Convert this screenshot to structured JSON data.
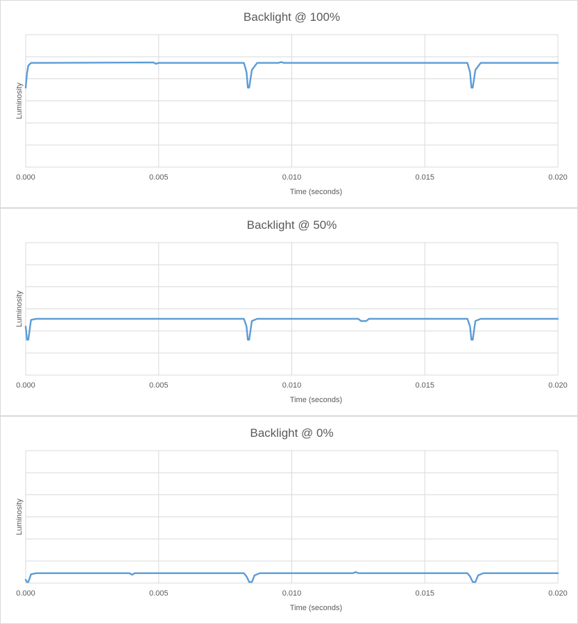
{
  "chart_data": [
    {
      "type": "line",
      "title": "Backlight @ 100%",
      "xlabel": "Time (seconds)",
      "ylabel": "Luminosity",
      "xlim": [
        0,
        0.02
      ],
      "ylim": [
        0,
        6
      ],
      "x_ticks": [
        "0.000",
        "0.005",
        "0.010",
        "0.015",
        "0.020"
      ],
      "y_gridlines": 6,
      "grid": true,
      "legend": "none",
      "series": [
        {
          "color": "#5b9bd5",
          "x": [
            0,
            5e-05,
            0.0001,
            0.0002,
            0.0004,
            0.0048,
            0.0049,
            0.005,
            0.0082,
            0.0083,
            0.00835,
            0.0084,
            0.0085,
            0.0087,
            0.0095,
            0.0096,
            0.0097,
            0.0166,
            0.0167,
            0.01675,
            0.0168,
            0.0169,
            0.0171,
            0.02
          ],
          "y": [
            3.6,
            4.25,
            4.6,
            4.72,
            4.72,
            4.74,
            4.68,
            4.72,
            4.72,
            4.3,
            3.6,
            3.6,
            4.4,
            4.72,
            4.72,
            4.76,
            4.72,
            4.72,
            4.3,
            3.6,
            3.6,
            4.4,
            4.72,
            4.72
          ]
        }
      ]
    },
    {
      "type": "line",
      "title": "Backlight @ 50%",
      "xlabel": "Time (seconds)",
      "ylabel": "Luminosity",
      "xlim": [
        0,
        0.02
      ],
      "ylim": [
        0,
        6
      ],
      "x_ticks": [
        "0.000",
        "0.005",
        "0.010",
        "0.015",
        "0.020"
      ],
      "y_gridlines": 6,
      "grid": true,
      "legend": "none",
      "series": [
        {
          "color": "#5b9bd5",
          "x": [
            0,
            5e-05,
            0.0001,
            0.0002,
            0.0004,
            0.0082,
            0.0083,
            0.00835,
            0.0084,
            0.0085,
            0.0087,
            0.0125,
            0.0126,
            0.0128,
            0.0129,
            0.0166,
            0.0167,
            0.01675,
            0.0168,
            0.0169,
            0.0171,
            0.02
          ],
          "y": [
            2.2,
            1.6,
            1.6,
            2.5,
            2.55,
            2.55,
            2.2,
            1.6,
            1.6,
            2.45,
            2.55,
            2.55,
            2.45,
            2.45,
            2.55,
            2.55,
            2.2,
            1.6,
            1.6,
            2.45,
            2.55,
            2.55
          ]
        }
      ]
    },
    {
      "type": "line",
      "title": "Backlight @ 0%",
      "xlabel": "Time (seconds)",
      "ylabel": "Luminosity",
      "xlim": [
        0,
        0.02
      ],
      "ylim": [
        0,
        6
      ],
      "x_ticks": [
        "0.000",
        "0.005",
        "0.010",
        "0.015",
        "0.020"
      ],
      "y_gridlines": 6,
      "grid": true,
      "legend": "none",
      "series": [
        {
          "color": "#5b9bd5",
          "x": [
            0,
            5e-05,
            0.0001,
            0.0002,
            0.0004,
            0.0039,
            0.004,
            0.0041,
            0.0082,
            0.0083,
            0.0084,
            0.0085,
            0.0086,
            0.0088,
            0.0123,
            0.0124,
            0.0125,
            0.0166,
            0.0167,
            0.0168,
            0.0169,
            0.017,
            0.0172,
            0.02
          ],
          "y": [
            0.15,
            0.05,
            0.05,
            0.4,
            0.45,
            0.45,
            0.38,
            0.45,
            0.45,
            0.3,
            0.05,
            0.05,
            0.35,
            0.45,
            0.45,
            0.5,
            0.45,
            0.45,
            0.3,
            0.05,
            0.05,
            0.35,
            0.45,
            0.45
          ]
        }
      ]
    }
  ]
}
